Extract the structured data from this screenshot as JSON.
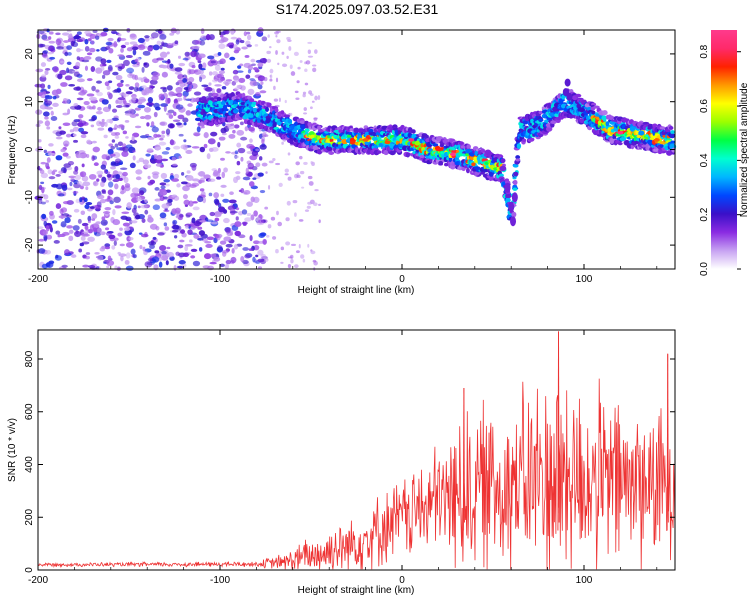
{
  "title": "S174.2025.097.03.52.E31",
  "chart_data": [
    {
      "type": "heatmap",
      "xlabel": "Height of straight line (km)",
      "ylabel": "Frequency (Hz)",
      "xlim": [
        -200,
        150
      ],
      "ylim": [
        -25,
        25
      ],
      "xticks": [
        -200,
        -100,
        0,
        100
      ],
      "yticks": [
        -20,
        -10,
        0,
        10,
        20
      ],
      "colorbar": {
        "label": "Normalized spectral amplitude",
        "range": [
          0,
          0.88
        ],
        "ticks": [
          "0.0",
          "0.2",
          "0.4",
          "0.6",
          "0.8"
        ],
        "tick_values": [
          0,
          0.2,
          0.4,
          0.6,
          0.8
        ],
        "colormap": [
          "#ffffff",
          "#c7a2f2",
          "#8a2be2",
          "#3a10c8",
          "#0047ff",
          "#00b7ff",
          "#00ffd0",
          "#00ff44",
          "#9cff00",
          "#ffff00",
          "#ff9900",
          "#ff2200",
          "#ff2a6a",
          "#ff3a8c"
        ]
      },
      "ridge_points": [
        {
          "x": -105,
          "f": 8
        },
        {
          "x": -90,
          "f": 9
        },
        {
          "x": -75,
          "f": 7
        },
        {
          "x": -60,
          "f": 4
        },
        {
          "x": -45,
          "f": 2
        },
        {
          "x": -30,
          "f": 2
        },
        {
          "x": -15,
          "f": 2
        },
        {
          "x": 0,
          "f": 2
        },
        {
          "x": 15,
          "f": 0
        },
        {
          "x": 30,
          "f": -1
        },
        {
          "x": 45,
          "f": -3
        },
        {
          "x": 55,
          "f": -4
        },
        {
          "x": 60,
          "f": -14
        },
        {
          "x": 65,
          "f": 4
        },
        {
          "x": 75,
          "f": 5
        },
        {
          "x": 90,
          "f": 10
        },
        {
          "x": 100,
          "f": 8
        },
        {
          "x": 115,
          "f": 4
        },
        {
          "x": 130,
          "f": 3
        },
        {
          "x": 145,
          "f": 2
        }
      ]
    },
    {
      "type": "line",
      "xlabel": "Height of straight line (km)",
      "ylabel": "SNR (10 * v/v)",
      "xlim": [
        -200,
        150
      ],
      "ylim": [
        0,
        910
      ],
      "xticks": [
        -200,
        -100,
        0,
        100
      ],
      "yticks": [
        0,
        200,
        400,
        600,
        800
      ],
      "series": [
        {
          "color": "#ee3333",
          "envelope": [
            {
              "x": -200,
              "base": 20,
              "amp": 8
            },
            {
              "x": -80,
              "base": 22,
              "amp": 12
            },
            {
              "x": -65,
              "base": 30,
              "amp": 40
            },
            {
              "x": -40,
              "base": 70,
              "amp": 120
            },
            {
              "x": -20,
              "base": 120,
              "amp": 150
            },
            {
              "x": 0,
              "base": 200,
              "amp": 180
            },
            {
              "x": 20,
              "base": 260,
              "amp": 250
            },
            {
              "x": 35,
              "base": 300,
              "amp": 380
            },
            {
              "x": 50,
              "base": 320,
              "amp": 380
            },
            {
              "x": 70,
              "base": 340,
              "amp": 420
            },
            {
              "x": 85,
              "base": 360,
              "amp": 520
            },
            {
              "x": 100,
              "base": 340,
              "amp": 420
            },
            {
              "x": 130,
              "base": 330,
              "amp": 380
            },
            {
              "x": 150,
              "base": 320,
              "amp": 300
            }
          ],
          "peaks": [
            {
              "x": 34,
              "y": 690
            },
            {
              "x": 86,
              "y": 905
            },
            {
              "x": 146,
              "y": 820
            }
          ]
        }
      ]
    }
  ]
}
